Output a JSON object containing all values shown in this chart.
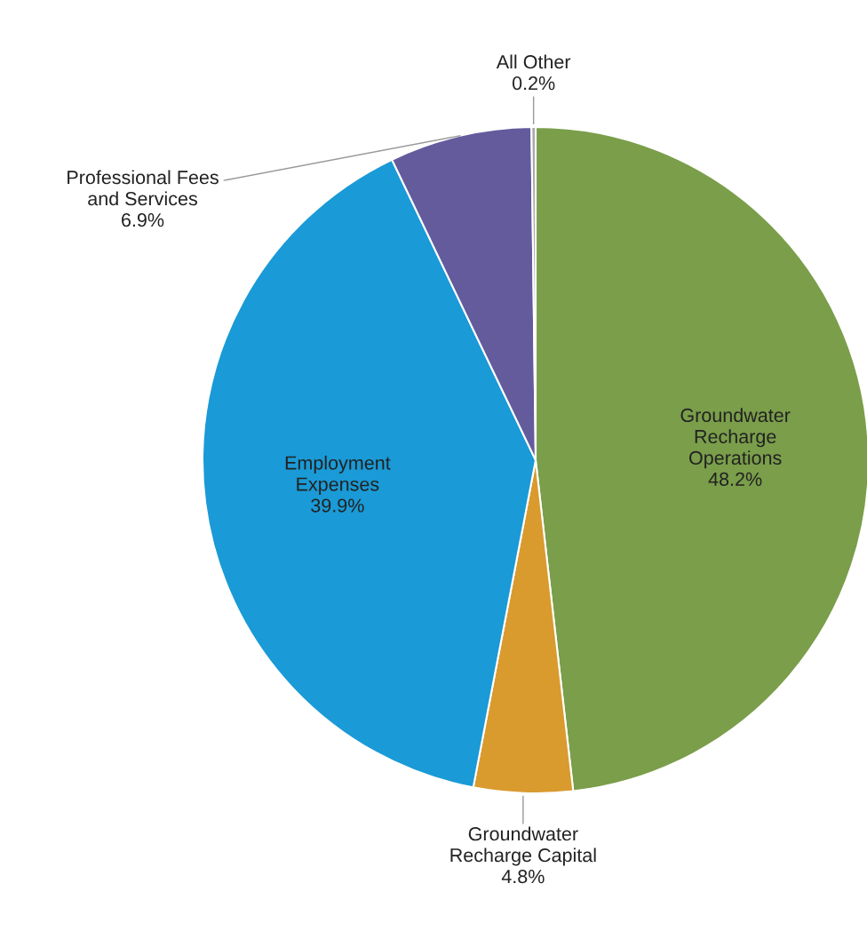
{
  "chart_data": {
    "type": "pie",
    "categories": [
      "Groundwater\nRecharge\nOperations",
      "Groundwater\nRecharge Capital",
      "Employment\nExpenses",
      "Professional Fees\nand Services",
      "All Other"
    ],
    "values": [
      48.2,
      4.8,
      39.9,
      6.9,
      0.2
    ],
    "value_labels": [
      "48.2%",
      "4.8%",
      "39.9%",
      "6.9%",
      "0.2%"
    ],
    "colors": [
      "#7a9e4a",
      "#d99a2e",
      "#1a9ad6",
      "#635b9c",
      "#a7a7a7"
    ],
    "legend": false
  }
}
